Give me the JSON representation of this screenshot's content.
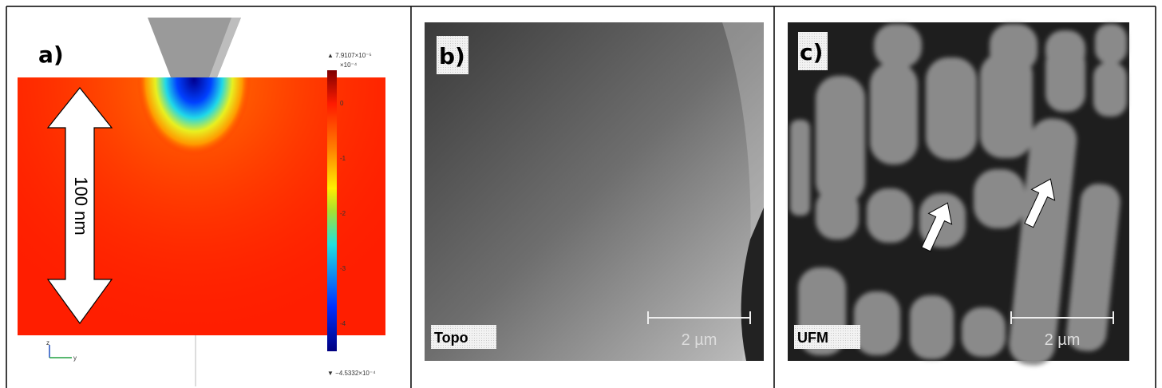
{
  "panels": [
    {
      "label": "a)",
      "dimension": "100 nm",
      "colorbar": {
        "max": "▲ 7.9107×10⁻⁵",
        "multiplier": "×10⁻⁴",
        "ticks": [
          "0",
          "-1",
          "-2",
          "-3",
          "-4"
        ],
        "min": "▼ −4.5332×10⁻⁴"
      },
      "axes": {
        "vertical": "z",
        "horizontal": "y"
      }
    },
    {
      "label": "b)",
      "mode": "Topo",
      "scale": "2 µm"
    },
    {
      "label": "c)",
      "mode": "UFM",
      "scale": "2 µm"
    }
  ]
}
